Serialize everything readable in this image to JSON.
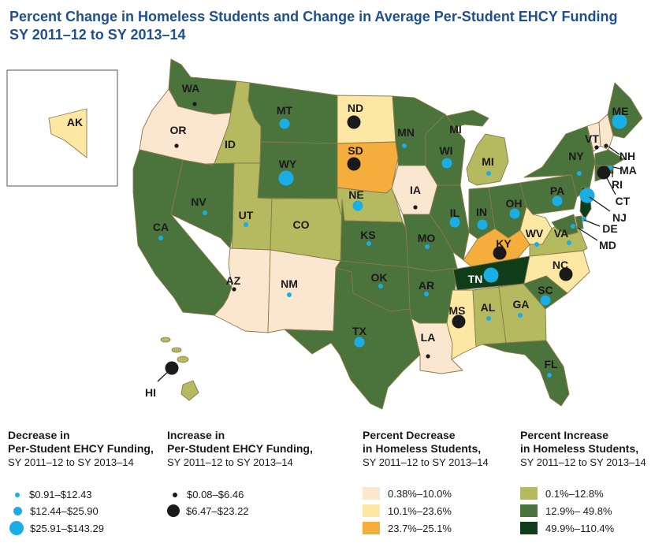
{
  "title": {
    "line1": "Percent Change in Homeless Students and Change in Average Per-Student EHCY Funding",
    "line2": "SY 2011–12 to SY 2013–14"
  },
  "colors": {
    "inc_small": "#b5b95f",
    "inc_mid": "#4b733c",
    "inc_large": "#0f3d19",
    "dec_small": "#fbe6d0",
    "dec_mid": "#fde8a3",
    "dec_large": "#f5ad3c",
    "funding_decrease_dot": "#19afe6",
    "funding_increase_dot": "#1a1a1a"
  },
  "states": [
    {
      "abbr": "WA",
      "fill": "inc_mid",
      "dot": "increase",
      "size": "small"
    },
    {
      "abbr": "OR",
      "fill": "dec_small",
      "dot": "increase",
      "size": "small"
    },
    {
      "abbr": "CA",
      "fill": "inc_mid",
      "dot": "decrease",
      "size": "small"
    },
    {
      "abbr": "ID",
      "fill": "inc_small",
      "dot": "none",
      "size": "none"
    },
    {
      "abbr": "NV",
      "fill": "inc_mid",
      "dot": "decrease",
      "size": "small"
    },
    {
      "abbr": "MT",
      "fill": "inc_mid",
      "dot": "decrease",
      "size": "medium"
    },
    {
      "abbr": "WY",
      "fill": "inc_mid",
      "dot": "decrease",
      "size": "large"
    },
    {
      "abbr": "UT",
      "fill": "inc_small",
      "dot": "decrease",
      "size": "small"
    },
    {
      "abbr": "CO",
      "fill": "inc_small",
      "dot": "none",
      "size": "none"
    },
    {
      "abbr": "AZ",
      "fill": "dec_small",
      "dot": "increase",
      "size": "small"
    },
    {
      "abbr": "NM",
      "fill": "dec_small",
      "dot": "decrease",
      "size": "small"
    },
    {
      "abbr": "ND",
      "fill": "dec_mid",
      "dot": "increase",
      "size": "large"
    },
    {
      "abbr": "SD",
      "fill": "dec_large",
      "dot": "increase",
      "size": "large"
    },
    {
      "abbr": "NE",
      "fill": "inc_small",
      "dot": "decrease",
      "size": "medium"
    },
    {
      "abbr": "KS",
      "fill": "inc_mid",
      "dot": "decrease",
      "size": "small"
    },
    {
      "abbr": "OK",
      "fill": "inc_mid",
      "dot": "decrease",
      "size": "small"
    },
    {
      "abbr": "TX",
      "fill": "inc_mid",
      "dot": "decrease",
      "size": "medium"
    },
    {
      "abbr": "MN",
      "fill": "inc_mid",
      "dot": "decrease",
      "size": "small"
    },
    {
      "abbr": "IA",
      "fill": "dec_small",
      "dot": "increase",
      "size": "small"
    },
    {
      "abbr": "MO",
      "fill": "inc_mid",
      "dot": "decrease",
      "size": "small"
    },
    {
      "abbr": "AR",
      "fill": "inc_mid",
      "dot": "decrease",
      "size": "small"
    },
    {
      "abbr": "LA",
      "fill": "dec_small",
      "dot": "increase",
      "size": "small"
    },
    {
      "abbr": "WI",
      "fill": "inc_mid",
      "dot": "decrease",
      "size": "medium"
    },
    {
      "abbr": "IL",
      "fill": "inc_mid",
      "dot": "decrease",
      "size": "medium"
    },
    {
      "abbr": "MI",
      "fill": "inc_small",
      "dot": "decrease",
      "size": "small"
    },
    {
      "abbr": "IN",
      "fill": "inc_mid",
      "dot": "decrease",
      "size": "medium"
    },
    {
      "abbr": "OH",
      "fill": "inc_mid",
      "dot": "decrease",
      "size": "medium"
    },
    {
      "abbr": "KY",
      "fill": "dec_large",
      "dot": "increase",
      "size": "large"
    },
    {
      "abbr": "TN",
      "fill": "inc_large",
      "dot": "decrease",
      "size": "large"
    },
    {
      "abbr": "MS",
      "fill": "dec_mid",
      "dot": "increase",
      "size": "large"
    },
    {
      "abbr": "AL",
      "fill": "inc_small",
      "dot": "decrease",
      "size": "small"
    },
    {
      "abbr": "GA",
      "fill": "inc_small",
      "dot": "decrease",
      "size": "small"
    },
    {
      "abbr": "FL",
      "fill": "inc_mid",
      "dot": "decrease",
      "size": "small"
    },
    {
      "abbr": "SC",
      "fill": "inc_mid",
      "dot": "decrease",
      "size": "medium"
    },
    {
      "abbr": "NC",
      "fill": "dec_mid",
      "dot": "increase",
      "size": "large"
    },
    {
      "abbr": "VA",
      "fill": "inc_small",
      "dot": "decrease",
      "size": "small"
    },
    {
      "abbr": "WV",
      "fill": "dec_mid",
      "dot": "decrease",
      "size": "small"
    },
    {
      "abbr": "PA",
      "fill": "inc_mid",
      "dot": "decrease",
      "size": "medium"
    },
    {
      "abbr": "NY",
      "fill": "inc_mid",
      "dot": "decrease",
      "size": "small"
    },
    {
      "abbr": "ME",
      "fill": "inc_mid",
      "dot": "decrease",
      "size": "large"
    },
    {
      "abbr": "VT",
      "fill": "dec_small",
      "dot": "increase",
      "size": "small"
    },
    {
      "abbr": "NH",
      "fill": "dec_small",
      "dot": "increase",
      "size": "small"
    },
    {
      "abbr": "MA",
      "fill": "inc_mid",
      "dot": "decrease",
      "size": "small"
    },
    {
      "abbr": "RI",
      "fill": "inc_mid",
      "dot": "none",
      "size": "none"
    },
    {
      "abbr": "CT",
      "fill": "inc_mid",
      "dot": "increase",
      "size": "large"
    },
    {
      "abbr": "NJ",
      "fill": "inc_large",
      "dot": "decrease",
      "size": "large"
    },
    {
      "abbr": "DE",
      "fill": "inc_mid",
      "dot": "decrease",
      "size": "small"
    },
    {
      "abbr": "MD",
      "fill": "inc_mid",
      "dot": "decrease",
      "size": "small"
    },
    {
      "abbr": "AK",
      "fill": "dec_mid",
      "dot": "none",
      "size": "none"
    },
    {
      "abbr": "HI",
      "fill": "inc_small",
      "dot": "increase",
      "size": "large"
    }
  ],
  "legend": {
    "funding_decrease": {
      "heading": [
        "Decrease in",
        "Per-Student EHCY Funding,"
      ],
      "subheading": "SY 2011–12 to SY 2013–14",
      "items": [
        "$0.91–$12.43",
        "$12.44–$25.90",
        "$25.91–$143.29"
      ]
    },
    "funding_increase": {
      "heading": [
        "Increase in",
        "Per-Student EHCY Funding,"
      ],
      "subheading": "SY 2011–12 to SY 2013–14",
      "items": [
        "$0.08–$6.46",
        "$6.47–$23.22"
      ]
    },
    "homeless_decrease": {
      "heading": [
        "Percent Decrease",
        "in Homeless Students,"
      ],
      "subheading": "SY 2011–12 to SY 2013–14",
      "items": [
        "0.38%–10.0%",
        "10.1%–23.6%",
        "23.7%–25.1%"
      ]
    },
    "homeless_increase": {
      "heading": [
        "Percent Increase",
        "in Homeless Students,"
      ],
      "subheading": "SY 2011–12 to SY 2013–14",
      "items": [
        "0.1%–12.8%",
        "12.9%– 49.8%",
        "49.9%–110.4%"
      ]
    }
  }
}
